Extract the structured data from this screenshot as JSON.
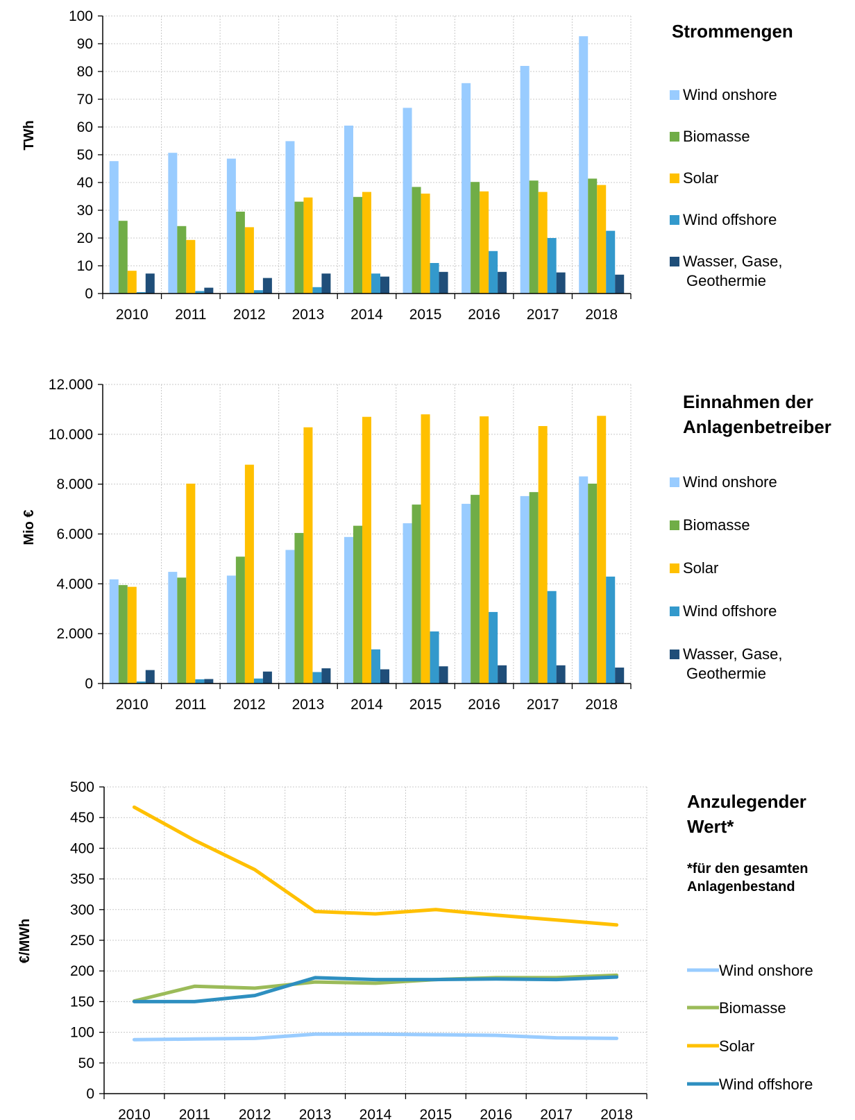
{
  "colors": {
    "Wind onshore": "#99CCFF",
    "Biomasse": "#70AD47",
    "Solar": "#FFC000",
    "Wind offshore": "#3399CC",
    "Wasser, Gase, Geothermie": "#1F4E79",
    "Biomasse_line": "#9BBB59",
    "Wind offshore_line": "#2E8FC0"
  },
  "chart_data": [
    {
      "type": "bar",
      "title": "Strommengen",
      "ylabel": "TWh",
      "ylim": [
        0,
        100
      ],
      "yticks": [
        "0",
        "10",
        "20",
        "30",
        "40",
        "50",
        "60",
        "70",
        "80",
        "90",
        "100"
      ],
      "categories": [
        "2010",
        "2011",
        "2012",
        "2013",
        "2014",
        "2015",
        "2016",
        "2017",
        "2018"
      ],
      "grid": true,
      "legend": "right",
      "series": [
        {
          "name": "Wind onshore",
          "values": [
            47.7,
            50.7,
            48.6,
            54.9,
            60.5,
            66.9,
            75.8,
            82.0,
            92.7
          ]
        },
        {
          "name": "Biomasse",
          "values": [
            26.2,
            24.3,
            29.5,
            33.1,
            34.8,
            38.4,
            40.2,
            40.7,
            41.4
          ]
        },
        {
          "name": "Solar",
          "values": [
            8.2,
            19.3,
            23.9,
            34.6,
            36.6,
            36.0,
            36.8,
            36.6,
            39.1
          ]
        },
        {
          "name": "Wind offshore",
          "values": [
            0.5,
            0.9,
            1.2,
            2.3,
            7.2,
            11.0,
            15.3,
            20.0,
            22.6
          ]
        },
        {
          "name": "Wasser, Gase, Geothermie",
          "values": [
            7.2,
            2.1,
            5.6,
            7.2,
            6.1,
            7.8,
            7.8,
            7.6,
            6.8
          ]
        }
      ],
      "legend_lines": [
        [
          "Wind onshore"
        ],
        [
          "Biomasse"
        ],
        [
          "Solar"
        ],
        [
          "Wind offshore"
        ],
        [
          "Wasser, Gase,",
          "Geothermie"
        ]
      ]
    },
    {
      "type": "bar",
      "title_lines": [
        "Einnahmen der",
        "Anlagenbetreiber"
      ],
      "ylabel": "Mio €",
      "ylim": [
        0,
        12000
      ],
      "yticks": [
        "0",
        "2.000",
        "4.000",
        "6.000",
        "8.000",
        "10.000",
        "12.000"
      ],
      "categories": [
        "2010",
        "2011",
        "2012",
        "2013",
        "2014",
        "2015",
        "2016",
        "2017",
        "2018"
      ],
      "grid": true,
      "legend": "right",
      "series": [
        {
          "name": "Wind onshore",
          "values": [
            4180,
            4480,
            4330,
            5360,
            5880,
            6430,
            7210,
            7520,
            8310
          ]
        },
        {
          "name": "Biomasse",
          "values": [
            3950,
            4250,
            5090,
            6040,
            6330,
            7180,
            7570,
            7680,
            8020
          ]
        },
        {
          "name": "Solar",
          "values": [
            3880,
            8020,
            8780,
            10280,
            10700,
            10800,
            10720,
            10330,
            10740
          ]
        },
        {
          "name": "Wind offshore",
          "values": [
            80,
            170,
            200,
            460,
            1370,
            2090,
            2870,
            3710,
            4290
          ]
        },
        {
          "name": "Wasser, Gase, Geothermie",
          "values": [
            540,
            180,
            480,
            610,
            570,
            690,
            730,
            730,
            640
          ]
        }
      ],
      "legend_lines": [
        [
          "Wind onshore"
        ],
        [
          "Biomasse"
        ],
        [
          "Solar"
        ],
        [
          "Wind offshore"
        ],
        [
          "Wasser, Gase,",
          "Geothermie"
        ]
      ]
    },
    {
      "type": "line",
      "title_lines": [
        "Anzulegender",
        "Wert*"
      ],
      "note_lines": [
        "*für den gesamten",
        "Anlagenbestand"
      ],
      "ylabel": "€/MWh",
      "ylim": [
        0,
        500
      ],
      "yticks": [
        "0",
        "50",
        "100",
        "150",
        "200",
        "250",
        "300",
        "350",
        "400",
        "450",
        "500"
      ],
      "categories": [
        "2010",
        "2011",
        "2012",
        "2013",
        "2014",
        "2015",
        "2016",
        "2017",
        "2018"
      ],
      "grid": true,
      "legend": "right",
      "series": [
        {
          "name": "Wind onshore",
          "values": [
            88,
            89,
            90,
            97,
            97,
            96,
            95,
            91,
            90
          ]
        },
        {
          "name": "Biomasse",
          "values": [
            151,
            175,
            172,
            182,
            180,
            186,
            189,
            189,
            193
          ]
        },
        {
          "name": "Solar",
          "values": [
            467,
            413,
            365,
            297,
            293,
            300,
            291,
            283,
            275
          ]
        },
        {
          "name": "Wind offshore",
          "values": [
            150,
            150,
            160,
            189,
            186,
            186,
            187,
            186,
            190
          ]
        }
      ]
    }
  ]
}
